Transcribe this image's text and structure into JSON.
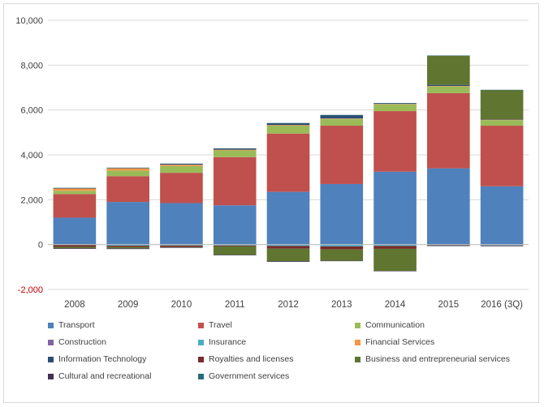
{
  "chart_data": {
    "type": "bar",
    "stacked": true,
    "categories": [
      "2008",
      "2009",
      "2010",
      "2011",
      "2012",
      "2013",
      "2014",
      "2015",
      "2016 (3Q)"
    ],
    "ylim": [
      -2000,
      10000
    ],
    "yticks": [
      -2000,
      0,
      2000,
      4000,
      6000,
      8000,
      10000
    ],
    "ytick_labels": [
      "-2,000",
      "0",
      "2,000",
      "4,000",
      "6,000",
      "8,000",
      "10,000"
    ],
    "grid": true,
    "legend_position": "bottom",
    "series": [
      {
        "name": "Transport",
        "color": "#4f81bd",
        "values": [
          1200,
          1900,
          1850,
          1750,
          2350,
          2700,
          3250,
          3400,
          2600
        ]
      },
      {
        "name": "Travel",
        "color": "#c0504d",
        "values": [
          1050,
          1150,
          1350,
          2150,
          2600,
          2600,
          2700,
          3350,
          2700
        ]
      },
      {
        "name": "Communication",
        "color": "#9bbb59",
        "values": [
          150,
          250,
          300,
          300,
          350,
          300,
          300,
          300,
          250
        ]
      },
      {
        "name": "Construction",
        "color": "#8064a2",
        "values": [
          0,
          0,
          0,
          0,
          0,
          0,
          0,
          0,
          0
        ]
      },
      {
        "name": "Insurance",
        "color": "#4bacc6",
        "values": [
          -20,
          -50,
          -40,
          -40,
          -60,
          -80,
          -60,
          -30,
          -40
        ]
      },
      {
        "name": "Financial Services",
        "color": "#f79646",
        "values": [
          100,
          100,
          60,
          30,
          30,
          20,
          20,
          20,
          20
        ]
      },
      {
        "name": "Information Technology",
        "color": "#2c4d75",
        "values": [
          20,
          20,
          40,
          50,
          80,
          150,
          30,
          50,
          20
        ]
      },
      {
        "name": "Royalties and licenses",
        "color": "#772c2a",
        "values": [
          -80,
          -60,
          -70,
          -40,
          -120,
          -140,
          -130,
          -20,
          -20
        ]
      },
      {
        "name": "Business and entrepreneurial services",
        "color": "#5f7530",
        "values": [
          -60,
          -60,
          -20,
          -380,
          -560,
          -500,
          -980,
          1300,
          1300
        ]
      },
      {
        "name": "Cultural and recreational",
        "color": "#403152",
        "values": [
          -30,
          -30,
          -20,
          -20,
          -30,
          -20,
          -20,
          -10,
          -10
        ]
      },
      {
        "name": "Government services",
        "color": "#276a7c",
        "values": [
          10,
          10,
          10,
          10,
          10,
          10,
          10,
          10,
          10
        ]
      }
    ]
  }
}
